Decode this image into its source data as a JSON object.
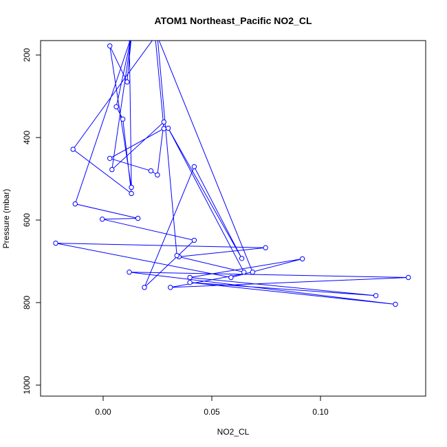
{
  "chart_data": {
    "type": "line",
    "title": "ATOM1 Northeast_Pacific NO2_CL",
    "xlabel": "NO2_CL",
    "ylabel": "Pressure (mbar)",
    "xlim": [
      -0.029,
      0.149
    ],
    "ylim": [
      1025,
      165
    ],
    "y_reversed": true,
    "x_ticks": [
      0.0,
      0.05,
      0.1
    ],
    "x_tick_labels": [
      "0.00",
      "0.05",
      "0.10"
    ],
    "y_ticks": [
      200,
      400,
      600,
      800,
      1000
    ],
    "y_tick_labels": [
      "200",
      "400",
      "600",
      "800",
      "1000"
    ],
    "grid": false,
    "legend": "none",
    "series": [
      {
        "color": "#0000ff",
        "x": [
          0.012,
          0.013,
          0.003,
          0.011,
          0.013,
          0.006,
          0.009,
          0.013,
          -0.014,
          0.024,
          0.028,
          0.003,
          0.022,
          0.025,
          0.028,
          0.004,
          0.013,
          -0.013,
          0.016,
          -0.0005,
          0.042,
          0.019,
          0.042,
          0.064,
          0.03,
          0.065,
          0.035,
          0.075,
          -0.022,
          0.059,
          0.092,
          0.04,
          0.126,
          0.04,
          0.135,
          0.012,
          0.141,
          0.031,
          0.069,
          0.025,
          0.034
        ],
        "y": [
          155,
          520,
          178,
          265,
          155,
          325,
          355,
          535,
          428,
          155,
          378,
          450,
          480,
          490,
          362,
          477,
          155,
          560,
          595,
          597,
          648,
          762,
          470,
          692,
          377,
          725,
          688,
          666,
          655,
          738,
          693,
          738,
          782,
          750,
          803,
          725,
          738,
          762,
          725,
          155,
          685
        ]
      }
    ]
  }
}
